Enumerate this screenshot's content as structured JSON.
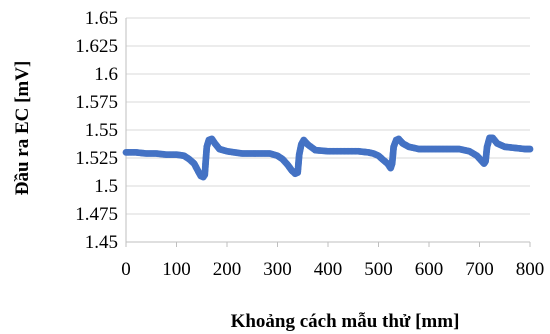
{
  "chart_data": {
    "type": "scatter",
    "xlabel": "Khoảng cách mẫu thử [mm]",
    "ylabel": "Đầu ra EC [mV]",
    "xlim": [
      0,
      800
    ],
    "ylim": [
      1.45,
      1.65
    ],
    "xticks": [
      "0",
      "100",
      "200",
      "300",
      "400",
      "500",
      "600",
      "700",
      "800"
    ],
    "yticks": [
      "1.45",
      "1.475",
      "1.5",
      "1.525",
      "1.55",
      "1.575",
      "1.6",
      "1.625",
      "1.65"
    ],
    "grid": true,
    "marker_color": "#4472C4",
    "series": [
      {
        "points": [
          [
            0,
            1.53
          ],
          [
            20,
            1.53
          ],
          [
            40,
            1.529
          ],
          [
            60,
            1.529
          ],
          [
            80,
            1.528
          ],
          [
            100,
            1.528
          ],
          [
            115,
            1.527
          ],
          [
            125,
            1.524
          ],
          [
            135,
            1.52
          ],
          [
            142,
            1.514
          ],
          [
            148,
            1.509
          ],
          [
            153,
            1.508
          ],
          [
            156,
            1.51
          ],
          [
            158,
            1.523
          ],
          [
            160,
            1.535
          ],
          [
            164,
            1.541
          ],
          [
            170,
            1.542
          ],
          [
            176,
            1.538
          ],
          [
            185,
            1.533
          ],
          [
            200,
            1.531
          ],
          [
            230,
            1.529
          ],
          [
            260,
            1.529
          ],
          [
            285,
            1.529
          ],
          [
            300,
            1.527
          ],
          [
            310,
            1.524
          ],
          [
            320,
            1.519
          ],
          [
            328,
            1.514
          ],
          [
            335,
            1.511
          ],
          [
            340,
            1.512
          ],
          [
            343,
            1.528
          ],
          [
            347,
            1.537
          ],
          [
            352,
            1.541
          ],
          [
            360,
            1.537
          ],
          [
            375,
            1.532
          ],
          [
            400,
            1.531
          ],
          [
            430,
            1.531
          ],
          [
            460,
            1.531
          ],
          [
            480,
            1.53
          ],
          [
            490,
            1.529
          ],
          [
            500,
            1.527
          ],
          [
            510,
            1.523
          ],
          [
            518,
            1.52
          ],
          [
            524,
            1.516
          ],
          [
            527,
            1.52
          ],
          [
            530,
            1.535
          ],
          [
            535,
            1.541
          ],
          [
            540,
            1.542
          ],
          [
            548,
            1.538
          ],
          [
            560,
            1.535
          ],
          [
            580,
            1.533
          ],
          [
            610,
            1.533
          ],
          [
            640,
            1.533
          ],
          [
            660,
            1.533
          ],
          [
            680,
            1.531
          ],
          [
            695,
            1.527
          ],
          [
            703,
            1.523
          ],
          [
            709,
            1.52
          ],
          [
            712,
            1.522
          ],
          [
            715,
            1.535
          ],
          [
            720,
            1.543
          ],
          [
            726,
            1.543
          ],
          [
            735,
            1.538
          ],
          [
            750,
            1.535
          ],
          [
            770,
            1.534
          ],
          [
            790,
            1.533
          ],
          [
            800,
            1.533
          ]
        ]
      }
    ]
  }
}
